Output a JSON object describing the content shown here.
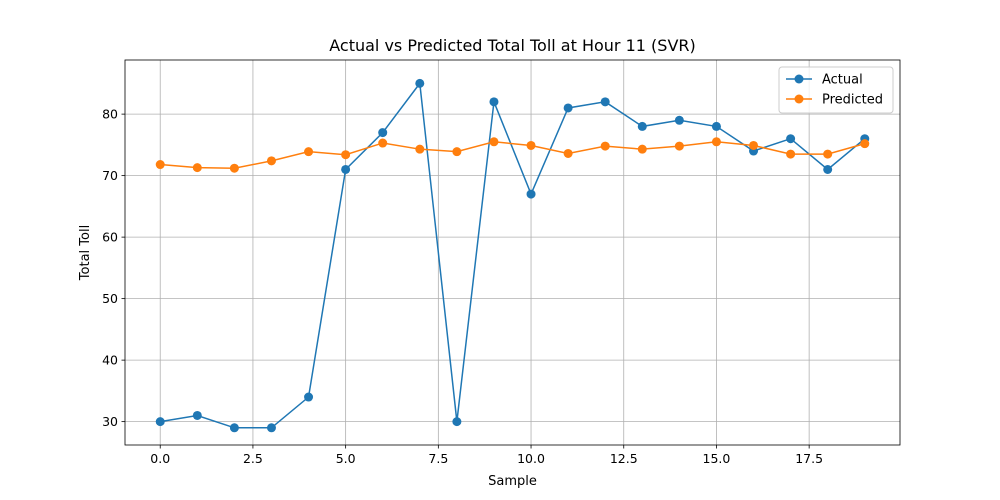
{
  "chart_data": {
    "type": "line",
    "title": "Actual vs Predicted Total Toll at Hour 11 (SVR)",
    "xlabel": "Sample",
    "ylabel": "Total Toll",
    "xlim": [
      -0.95,
      19.95
    ],
    "ylim": [
      26.2,
      88.8
    ],
    "xticks": [
      "0.0",
      "2.5",
      "5.0",
      "7.5",
      "10.0",
      "12.5",
      "15.0",
      "17.5"
    ],
    "yticks": [
      "30",
      "40",
      "50",
      "60",
      "70",
      "80"
    ],
    "grid": true,
    "legend_position": "top-right",
    "x": [
      0,
      1,
      2,
      3,
      4,
      5,
      6,
      7,
      8,
      9,
      10,
      11,
      12,
      13,
      14,
      15,
      16,
      17,
      18,
      19
    ],
    "series": [
      {
        "name": "Actual",
        "color": "#1f77b4",
        "values": [
          30,
          31,
          29,
          29,
          34,
          71,
          77,
          85,
          30,
          82,
          67,
          81,
          82,
          78,
          79,
          78,
          74,
          76,
          71,
          76
        ]
      },
      {
        "name": "Predicted",
        "color": "#ff7f0e",
        "values": [
          71.8,
          71.3,
          71.2,
          72.4,
          73.9,
          73.4,
          75.3,
          74.3,
          73.9,
          75.5,
          74.9,
          73.6,
          74.8,
          74.3,
          74.8,
          75.5,
          74.9,
          73.5,
          73.5,
          75.2
        ]
      }
    ]
  }
}
